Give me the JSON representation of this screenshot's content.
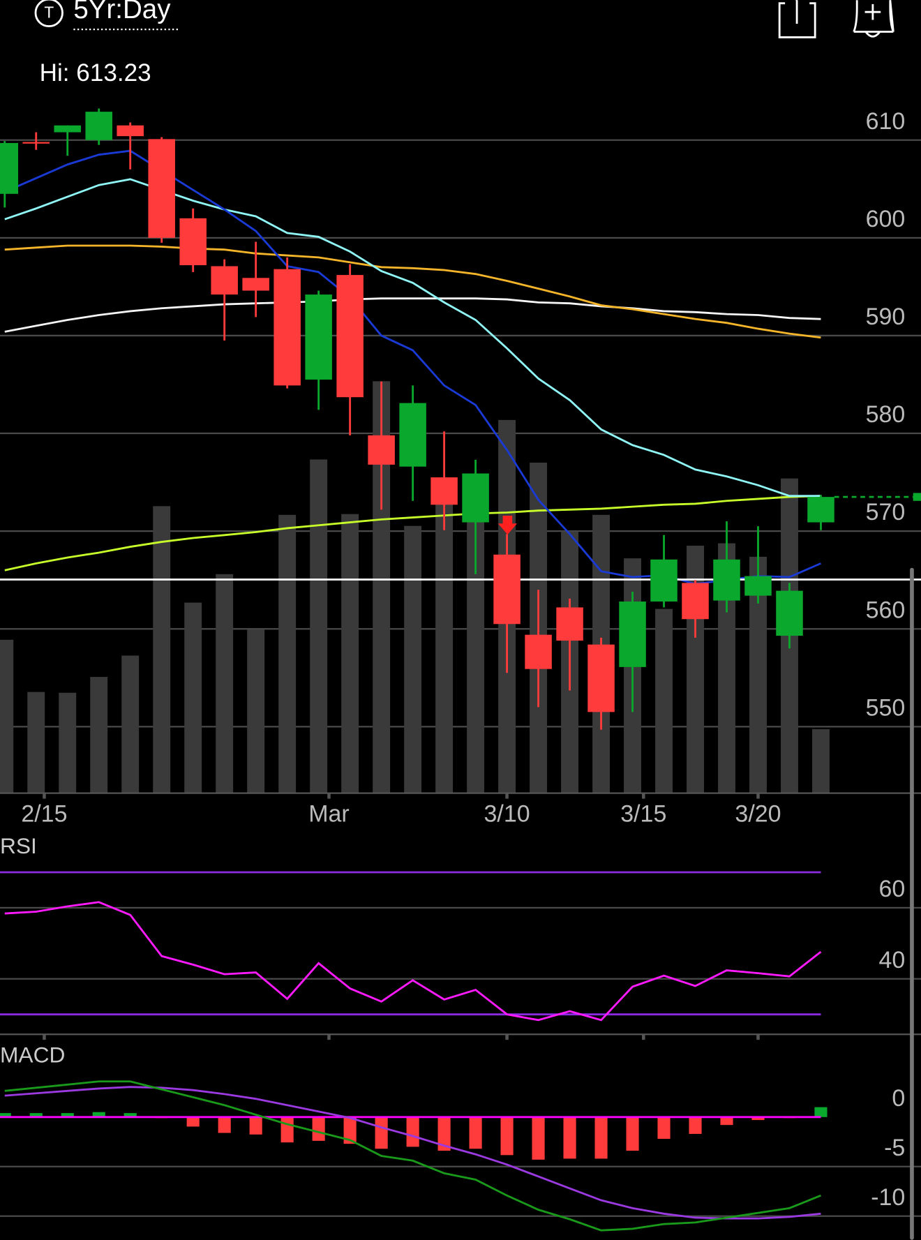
{
  "header": {
    "icon": "T",
    "range": "5Yr:Day"
  },
  "chart_data": [
    {
      "type": "candlestick",
      "annotation": "Hi: 613.23",
      "categories": [
        null,
        null,
        null,
        null,
        null,
        null,
        null,
        null,
        null,
        null,
        null,
        null,
        null,
        null,
        null,
        null,
        null,
        null,
        null,
        null,
        null,
        null,
        null,
        null,
        null,
        null,
        null
      ],
      "open": [
        604.5,
        609.8,
        610.8,
        610.0,
        611.5,
        610.1,
        602.0,
        597.1,
        595.9,
        596.8,
        585.5,
        596.2,
        579.8,
        576.6,
        575.5,
        570.9,
        567.6,
        559.4,
        562.2,
        558.4,
        556.1,
        562.8,
        564.7,
        562.9,
        563.4,
        559.3,
        570.9
      ],
      "high": [
        609.9,
        610.8,
        611.5,
        613.23,
        611.8,
        610.3,
        603.0,
        597.8,
        599.6,
        598.0,
        594.6,
        597.3,
        585.3,
        584.9,
        580.2,
        577.3,
        569.7,
        564.0,
        563.1,
        559.1,
        563.8,
        569.6,
        565.0,
        571.0,
        570.5,
        564.7,
        573.7
      ],
      "low": [
        603.1,
        609.0,
        608.4,
        609.5,
        607.0,
        599.5,
        596.5,
        589.5,
        591.9,
        584.6,
        582.4,
        579.8,
        572.2,
        573.1,
        570.1,
        565.6,
        555.5,
        552.0,
        553.7,
        549.7,
        551.5,
        562.2,
        559.1,
        561.7,
        562.6,
        558.0,
        570.1
      ],
      "close": [
        609.7,
        609.7,
        611.5,
        612.9,
        610.4,
        600.0,
        597.2,
        594.2,
        594.6,
        584.9,
        594.2,
        583.7,
        576.8,
        583.1,
        572.7,
        575.9,
        560.5,
        555.9,
        558.8,
        551.5,
        562.8,
        567.1,
        561.0,
        567.1,
        565.4,
        563.9,
        573.5
      ],
      "up_color": "#0aa82c",
      "down_color": "#ff3b3b",
      "volume": {
        "color": "#3a3a3a",
        "values": [
          194,
          128,
          127,
          147,
          174,
          363,
          241,
          277,
          207,
          352,
          422,
          353,
          521,
          338,
          370,
          350,
          472,
          418,
          331,
          352,
          297,
          233,
          313,
          316,
          299,
          398,
          81
        ]
      },
      "volume_lim": [
        0,
        873
      ],
      "lines": [
        {
          "color": "#f5f5f5",
          "values": [
            590.4,
            591.0,
            591.6,
            592.1,
            592.5,
            592.8,
            593.0,
            593.2,
            593.3,
            593.4,
            593.5,
            593.7,
            593.8,
            593.8,
            593.8,
            593.8,
            593.7,
            593.4,
            593.3,
            593.0,
            592.8,
            592.5,
            592.4,
            592.2,
            592.1,
            591.8,
            591.7
          ]
        },
        {
          "color": "#f5b52a",
          "values": [
            598.8,
            599.0,
            599.2,
            599.2,
            599.2,
            599.1,
            598.9,
            598.8,
            598.4,
            598.2,
            598.0,
            597.5,
            597.0,
            596.9,
            596.7,
            596.3,
            595.6,
            594.8,
            594.0,
            593.1,
            592.7,
            592.2,
            591.7,
            591.3,
            590.7,
            590.2,
            589.8
          ]
        },
        {
          "color": "#c8ff2a",
          "values": [
            566.0,
            566.7,
            567.3,
            567.8,
            568.4,
            568.9,
            569.3,
            569.6,
            569.9,
            570.3,
            570.6,
            570.9,
            571.2,
            571.4,
            571.6,
            571.8,
            571.9,
            572.1,
            572.2,
            572.3,
            572.5,
            572.7,
            572.8,
            573.1,
            573.3,
            573.5,
            573.6
          ]
        },
        {
          "color": "#8ff5f5",
          "values": [
            601.9,
            603.0,
            604.2,
            605.4,
            606.0,
            604.9,
            603.8,
            602.9,
            602.2,
            600.5,
            600.1,
            598.6,
            596.6,
            595.4,
            593.4,
            591.6,
            588.7,
            585.6,
            583.4,
            580.4,
            578.8,
            577.8,
            576.3,
            575.6,
            574.7,
            573.6,
            573.6
          ]
        },
        {
          "color": "#1a3ad6",
          "values": [
            604.7,
            606.1,
            607.5,
            608.5,
            608.9,
            606.9,
            604.9,
            602.9,
            600.7,
            597.1,
            596.5,
            593.9,
            590.0,
            588.5,
            584.9,
            582.9,
            578.3,
            573.2,
            569.7,
            565.9,
            565.3,
            565.5,
            564.6,
            565.0,
            565.4,
            565.3,
            566.7
          ]
        }
      ],
      "price_line": 565.05,
      "xlim": [
        -0.15,
        29.19
      ],
      "xticks": [
        {
          "value": 1.26,
          "label": "2/15"
        },
        {
          "value": 10.33,
          "label": "Mar"
        },
        {
          "value": 16.0,
          "label": "3/10"
        },
        {
          "value": 20.35,
          "label": "3/15"
        },
        {
          "value": 24.0,
          "label": "3/20"
        }
      ],
      "ylim": [
        543.2,
        613.8
      ],
      "yticks": [
        550,
        560,
        570,
        580,
        590,
        600,
        610
      ],
      "grid": true
    },
    {
      "type": "line",
      "title": "RSI",
      "color": "#ff1aff",
      "values": [
        58.4,
        58.9,
        60.4,
        61.6,
        58.0,
        46.4,
        44.0,
        41.3,
        41.8,
        34.4,
        44.4,
        37.3,
        33.6,
        39.6,
        34.2,
        36.9,
        30.0,
        28.4,
        30.9,
        28.4,
        37.8,
        40.9,
        38.0,
        42.4,
        41.6,
        40.7,
        47.6
      ],
      "bands": [
        70,
        30
      ],
      "band_color": "#8a2be2",
      "ylim": [
        24.4,
        72.9
      ],
      "yticks": [
        60,
        40
      ],
      "grid": true
    },
    {
      "type": "macd",
      "title": "MACD",
      "macd": {
        "color": "#1a9a1a",
        "values": [
          2.64,
          2.96,
          3.28,
          3.6,
          3.6,
          2.8,
          2.0,
          1.2,
          0.24,
          -0.72,
          -1.52,
          -2.32,
          -3.92,
          -4.4,
          -5.68,
          -6.32,
          -7.92,
          -9.36,
          -10.32,
          -11.44,
          -11.28,
          -10.8,
          -10.64,
          -10.16,
          -9.68,
          -9.2,
          -7.92
        ]
      },
      "signal": {
        "color": "#9a3ae0",
        "values": [
          2.16,
          2.4,
          2.64,
          2.88,
          3.04,
          2.96,
          2.72,
          2.32,
          1.84,
          1.2,
          0.56,
          -0.08,
          -1.04,
          -1.92,
          -2.88,
          -3.76,
          -4.8,
          -6.0,
          -7.2,
          -8.4,
          -9.2,
          -9.76,
          -10.16,
          -10.24,
          -10.24,
          -10.08,
          -9.76
        ]
      },
      "histogram": [
        0.4,
        0.4,
        0.4,
        0.5,
        0.4,
        -0.1,
        -0.96,
        -1.6,
        -1.76,
        -2.56,
        -2.4,
        -2.7,
        -3.2,
        -3.0,
        -3.4,
        -3.2,
        -3.84,
        -4.3,
        -4.2,
        -4.2,
        -3.4,
        -2.2,
        -1.7,
        -0.8,
        -0.3,
        -0.1,
        1.0
      ],
      "hist_up_color": "#0aa82c",
      "hist_down_color": "#ff3b3b",
      "zero_color": "#ff00ff",
      "ylim": [
        -12.4,
        7.0
      ],
      "yticks": [
        0,
        -5,
        -10
      ],
      "grid": true
    }
  ]
}
